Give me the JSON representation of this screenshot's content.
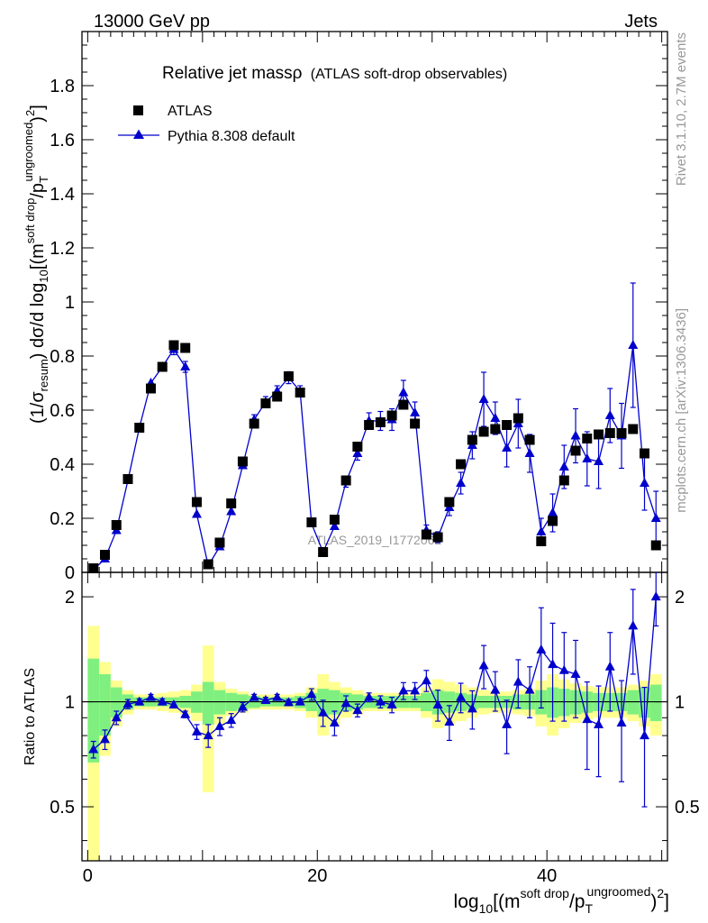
{
  "header": {
    "left": "13000 GeV pp",
    "right": "Jets"
  },
  "chart_data": {
    "type": "scatter",
    "title": "Relative jet massρ",
    "subtitle": "(ATLAS soft-drop observables)",
    "watermark": "ATLAS_2019_I1772062",
    "side_label_top": "Rivet 3.1.10,  2.7M events",
    "side_label_bottom": "mcplots.cern.ch [arXiv:1306.3436]",
    "legend_placement": "top-left",
    "colors": {
      "data": "#000000",
      "mc": "#0000cc",
      "band_stat": "#7ff07f",
      "band_tot": "#ffff90"
    },
    "main": {
      "ylabel_prefix": "(1/σ",
      "ylabel_sub": "resum",
      "ylabel_mid": ") dσ/d log",
      "ylabel_sub2": "10",
      "ylabel_open": "[(m",
      "ylabel_sup": "soft drop",
      "ylabel_slash": "/p",
      "ylabel_sup2": "ungroomed",
      "ylabel_sub3": "T",
      "ylabel_close": ")",
      "ylabel_sup3": "2",
      "ylabel_end": "]",
      "ylim": [
        0,
        2.0
      ],
      "yticks": [
        "0",
        "0.2",
        "0.4",
        "0.6",
        "0.8",
        "1",
        "1.2",
        "1.4",
        "1.6",
        "1.8"
      ]
    },
    "ratio": {
      "ylabel": "Ratio to ATLAS",
      "ylim": [
        0.35,
        2.35
      ],
      "log_y": true,
      "yticks": [
        "0.5",
        "1",
        "2"
      ],
      "reference": 1.0
    },
    "x": {
      "label_prefix": "log",
      "label_sub": "10",
      "label_open": "[(m",
      "label_sup": "soft drop",
      "label_slash": "/p",
      "label_sub2": "T",
      "label_sup2": "ungroomed",
      "label_close": ")",
      "label_sup3": "2",
      "label_end": "]",
      "xlim": [
        -0.5,
        50.5
      ],
      "xticks": [
        "0",
        "20",
        "40"
      ]
    },
    "x_centers": [
      0.5,
      1.5,
      2.5,
      3.5,
      4.5,
      5.5,
      6.5,
      7.5,
      8.5,
      9.5,
      10.5,
      11.5,
      12.5,
      13.5,
      14.5,
      15.5,
      16.5,
      17.5,
      18.5,
      19.5,
      20.5,
      21.5,
      22.5,
      23.5,
      24.5,
      25.5,
      26.5,
      27.5,
      28.5,
      29.5,
      30.5,
      31.5,
      32.5,
      33.5,
      34.5,
      35.5,
      36.5,
      37.5,
      38.5,
      39.5,
      40.5,
      41.5,
      42.5,
      43.5,
      44.5,
      45.5,
      46.5,
      47.5,
      48.5,
      49.5
    ],
    "series": [
      {
        "name": "ATLAS",
        "marker": "square",
        "values": [
          0.015,
          0.065,
          0.175,
          0.345,
          0.535,
          0.68,
          0.76,
          0.84,
          0.83,
          0.26,
          0.03,
          0.11,
          0.255,
          0.41,
          0.55,
          0.625,
          0.65,
          0.725,
          0.665,
          0.185,
          0.075,
          0.195,
          0.34,
          0.465,
          0.545,
          0.555,
          0.58,
          0.62,
          0.55,
          0.14,
          0.13,
          0.26,
          0.4,
          0.49,
          0.52,
          0.53,
          0.545,
          0.57,
          0.49,
          0.115,
          0.19,
          0.34,
          0.45,
          0.495,
          0.51,
          0.515,
          0.515,
          0.53,
          0.44,
          0.1
        ]
      },
      {
        "name": "Pythia 8.308 default",
        "marker": "triangle",
        "values": [
          0.01,
          0.05,
          0.155,
          0.34,
          0.535,
          0.7,
          0.76,
          0.825,
          0.76,
          0.215,
          0.025,
          0.095,
          0.225,
          0.395,
          0.565,
          0.63,
          0.67,
          0.72,
          0.67,
          0.18,
          0.075,
          0.17,
          0.335,
          0.44,
          0.56,
          0.56,
          0.565,
          0.665,
          0.59,
          0.155,
          0.13,
          0.24,
          0.33,
          0.47,
          0.64,
          0.57,
          0.46,
          0.55,
          0.44,
          0.15,
          0.22,
          0.39,
          0.505,
          0.42,
          0.41,
          0.58,
          0.505,
          0.84,
          0.33,
          0.2
        ],
        "errors": [
          0.003,
          0.006,
          0.01,
          0.012,
          0.015,
          0.015,
          0.015,
          0.02,
          0.02,
          0.01,
          0.003,
          0.008,
          0.012,
          0.015,
          0.018,
          0.02,
          0.02,
          0.022,
          0.02,
          0.01,
          0.006,
          0.012,
          0.02,
          0.025,
          0.03,
          0.035,
          0.04,
          0.045,
          0.04,
          0.02,
          0.02,
          0.03,
          0.04,
          0.05,
          0.1,
          0.06,
          0.07,
          0.09,
          0.07,
          0.05,
          0.07,
          0.08,
          0.1,
          0.1,
          0.1,
          0.1,
          0.12,
          0.23,
          0.1,
          0.1
        ],
        "ratio": [
          0.73,
          0.78,
          0.9,
          0.985,
          1.0,
          1.03,
          1.0,
          0.98,
          0.92,
          0.82,
          0.8,
          0.85,
          0.885,
          0.965,
          1.03,
          1.01,
          1.03,
          0.995,
          1.0,
          1.05,
          0.93,
          0.87,
          0.99,
          0.945,
          1.03,
          1.0,
          0.98,
          1.075,
          1.075,
          1.15,
          0.98,
          0.875,
          1.03,
          0.955,
          1.27,
          1.08,
          0.86,
          1.14,
          1.08,
          1.41,
          1.28,
          1.23,
          1.2,
          0.89,
          0.86,
          1.26,
          0.87,
          1.65,
          0.8,
          2.0
        ],
        "ratio_errors": [
          0.04,
          0.05,
          0.04,
          0.03,
          0.02,
          0.02,
          0.02,
          0.02,
          0.02,
          0.04,
          0.06,
          0.05,
          0.04,
          0.03,
          0.02,
          0.02,
          0.02,
          0.02,
          0.02,
          0.04,
          0.08,
          0.07,
          0.05,
          0.04,
          0.03,
          0.04,
          0.05,
          0.06,
          0.06,
          0.08,
          0.1,
          0.1,
          0.1,
          0.12,
          0.18,
          0.14,
          0.15,
          0.18,
          0.18,
          0.45,
          0.4,
          0.35,
          0.3,
          0.25,
          0.25,
          0.32,
          0.28,
          0.45,
          0.3,
          0.35
        ]
      }
    ],
    "ratio_band_stat": [
      0.33,
      0.2,
      0.1,
      0.05,
      0.03,
      0.03,
      0.03,
      0.03,
      0.04,
      0.07,
      0.14,
      0.08,
      0.06,
      0.05,
      0.04,
      0.03,
      0.03,
      0.03,
      0.04,
      0.06,
      0.09,
      0.08,
      0.06,
      0.05,
      0.04,
      0.04,
      0.04,
      0.04,
      0.04,
      0.06,
      0.08,
      0.07,
      0.06,
      0.05,
      0.04,
      0.04,
      0.04,
      0.05,
      0.05,
      0.08,
      0.1,
      0.09,
      0.08,
      0.07,
      0.06,
      0.06,
      0.06,
      0.08,
      0.1,
      0.12
    ],
    "ratio_band_tot": [
      0.65,
      0.3,
      0.15,
      0.08,
      0.05,
      0.05,
      0.06,
      0.07,
      0.08,
      0.12,
      0.45,
      0.14,
      0.09,
      0.07,
      0.05,
      0.05,
      0.05,
      0.05,
      0.06,
      0.1,
      0.2,
      0.14,
      0.1,
      0.08,
      0.06,
      0.06,
      0.06,
      0.06,
      0.06,
      0.1,
      0.16,
      0.14,
      0.12,
      0.1,
      0.08,
      0.07,
      0.07,
      0.08,
      0.09,
      0.15,
      0.2,
      0.16,
      0.13,
      0.11,
      0.1,
      0.1,
      0.1,
      0.12,
      0.15,
      0.2
    ]
  }
}
